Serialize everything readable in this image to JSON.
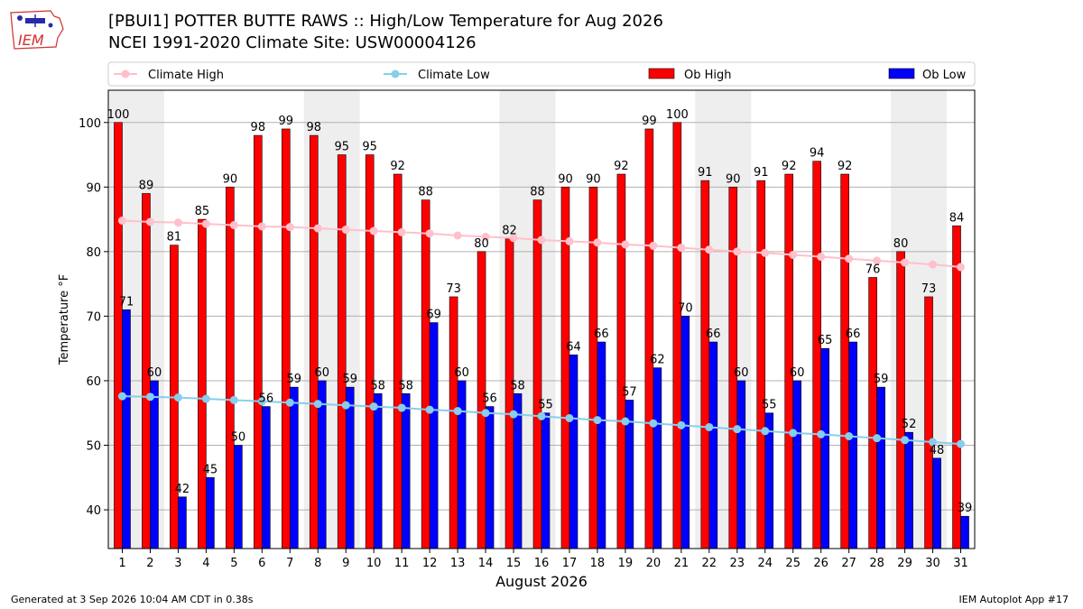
{
  "header": {
    "title_line1": "[PBUI1] POTTER BUTTE RAWS :: High/Low Temperature for Aug 2026",
    "title_line2": "NCEI 1991-2020 Climate Site: USW00004126",
    "logo_text": "IEM"
  },
  "footer": {
    "generated": "Generated at 3 Sep 2026 10:04 AM CDT in 0.38s",
    "app": "IEM Autoplot App #17"
  },
  "colors": {
    "ob_high": "#ff0000",
    "ob_low": "#0000ff",
    "climate_high": "#ffc0cb",
    "climate_low": "#87ceeb",
    "weekend_band": "#eeeeee"
  },
  "chart_data": {
    "type": "bar",
    "xlabel": "August 2026",
    "ylabel": "Temperature °F",
    "ylim": [
      34,
      105
    ],
    "yticks": [
      40,
      50,
      60,
      70,
      80,
      90,
      100
    ],
    "grid": true,
    "legend_placement": "top",
    "weekend_days": [
      1,
      2,
      8,
      9,
      15,
      16,
      22,
      23,
      29,
      30
    ],
    "x": [
      1,
      2,
      3,
      4,
      5,
      6,
      7,
      8,
      9,
      10,
      11,
      12,
      13,
      14,
      15,
      16,
      17,
      18,
      19,
      20,
      21,
      22,
      23,
      24,
      25,
      26,
      27,
      28,
      29,
      30,
      31
    ],
    "series": [
      {
        "name": "Ob High",
        "kind": "bar",
        "values": [
          100,
          89,
          81,
          85,
          90,
          98,
          99,
          98,
          95,
          95,
          92,
          88,
          73,
          80,
          82,
          88,
          90,
          90,
          92,
          99,
          100,
          91,
          90,
          91,
          92,
          94,
          92,
          76,
          80,
          73,
          84
        ]
      },
      {
        "name": "Ob Low",
        "kind": "bar",
        "values": [
          71,
          60,
          42,
          45,
          50,
          56,
          59,
          60,
          59,
          58,
          58,
          69,
          60,
          56,
          58,
          55,
          64,
          66,
          57,
          62,
          70,
          66,
          60,
          55,
          60,
          65,
          66,
          59,
          52,
          48,
          39
        ]
      },
      {
        "name": "Climate High",
        "kind": "line",
        "values": [
          84.8,
          84.6,
          84.5,
          84.3,
          84.1,
          83.9,
          83.8,
          83.6,
          83.4,
          83.2,
          83.0,
          82.8,
          82.5,
          82.3,
          82.1,
          81.8,
          81.6,
          81.4,
          81.1,
          80.9,
          80.6,
          80.3,
          80.0,
          79.8,
          79.5,
          79.2,
          78.9,
          78.6,
          78.3,
          78.0,
          77.6
        ]
      },
      {
        "name": "Climate Low",
        "kind": "line",
        "values": [
          57.6,
          57.5,
          57.4,
          57.2,
          57.0,
          56.8,
          56.6,
          56.4,
          56.2,
          56.0,
          55.8,
          55.5,
          55.3,
          55.0,
          54.8,
          54.5,
          54.2,
          53.9,
          53.7,
          53.4,
          53.1,
          52.8,
          52.5,
          52.2,
          51.9,
          51.7,
          51.4,
          51.1,
          50.8,
          50.5,
          50.2
        ]
      }
    ]
  }
}
